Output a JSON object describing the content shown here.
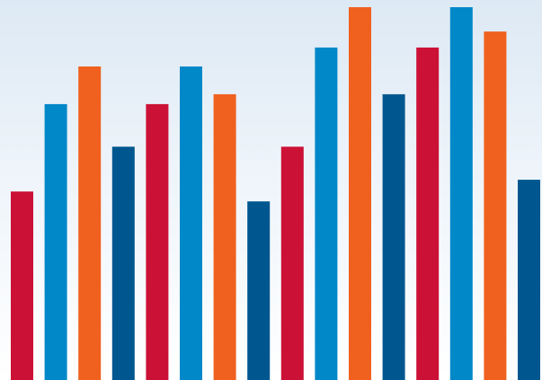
{
  "chart_data": {
    "type": "bar",
    "title": "",
    "xlabel": "",
    "ylabel": "",
    "ylim": [
      0,
      100
    ],
    "grid": false,
    "legend": "none",
    "values": [
      49.6,
      72.6,
      82.5,
      61.4,
      72.6,
      82.5,
      75.2,
      47.0,
      61.4,
      87.5,
      98.1,
      75.2,
      87.5,
      98.1,
      91.7,
      52.7
    ],
    "colors": [
      "#cc1136",
      "#0088c9",
      "#f0611f",
      "#00578f",
      "#cc1136",
      "#0088c9",
      "#f0611f",
      "#00578f",
      "#cc1136",
      "#0088c9",
      "#f0611f",
      "#00578f",
      "#cc1136",
      "#0088c9",
      "#f0611f",
      "#00578f"
    ]
  }
}
